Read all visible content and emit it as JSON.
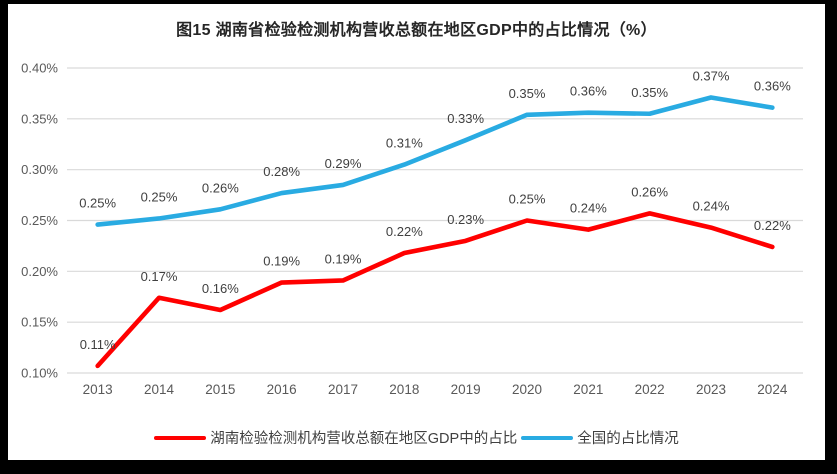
{
  "frame": {
    "border_color": "#000000",
    "panel_background": "#ffffff"
  },
  "chart_data": {
    "type": "line",
    "title": "图15 湖南省检验检测机构营收总额在地区GDP中的占比情况（%）",
    "categories": [
      "2013",
      "2014",
      "2015",
      "2016",
      "2017",
      "2018",
      "2019",
      "2020",
      "2021",
      "2022",
      "2023",
      "2024"
    ],
    "xlabel": "",
    "ylabel": "",
    "y_axis": {
      "min": 0.1,
      "max": 0.4,
      "tick_step": 0.05,
      "tick_values": [
        0.1,
        0.15,
        0.2,
        0.25,
        0.3,
        0.35,
        0.4
      ],
      "tick_labels": [
        "0.10%",
        "0.15%",
        "0.20%",
        "0.25%",
        "0.30%",
        "0.35%",
        "0.40%"
      ]
    },
    "grid": true,
    "legend_position": "bottom",
    "series": [
      {
        "name": "湖南检验检测机构营收总额在地区GDP中的占比",
        "color": "#FF0000",
        "values": [
          0.11,
          0.17,
          0.16,
          0.19,
          0.19,
          0.22,
          0.23,
          0.25,
          0.24,
          0.26,
          0.24,
          0.22
        ],
        "labels": [
          "0.11%",
          "0.17%",
          "0.16%",
          "0.19%",
          "0.19%",
          "0.22%",
          "0.23%",
          "0.25%",
          "0.24%",
          "0.26%",
          "0.24%",
          "0.22%"
        ],
        "plot_values": [
          0.107,
          0.174,
          0.162,
          0.189,
          0.191,
          0.218,
          0.23,
          0.25,
          0.241,
          0.257,
          0.243,
          0.224
        ]
      },
      {
        "name": "全国的占比情况",
        "color": "#29ABE2",
        "values": [
          0.25,
          0.25,
          0.26,
          0.28,
          0.29,
          0.31,
          0.33,
          0.35,
          0.36,
          0.35,
          0.37,
          0.36
        ],
        "labels": [
          "0.25%",
          "0.25%",
          "0.26%",
          "0.28%",
          "0.29%",
          "0.31%",
          "0.33%",
          "0.35%",
          "0.36%",
          "0.35%",
          "0.37%",
          "0.36%"
        ],
        "plot_values": [
          0.246,
          0.252,
          0.261,
          0.277,
          0.285,
          0.305,
          0.329,
          0.354,
          0.356,
          0.355,
          0.371,
          0.361
        ]
      }
    ],
    "colors": {
      "gridline": "#D9D9D9",
      "axis_text": "#595959",
      "data_label": "#404040",
      "title": "#262626"
    }
  }
}
